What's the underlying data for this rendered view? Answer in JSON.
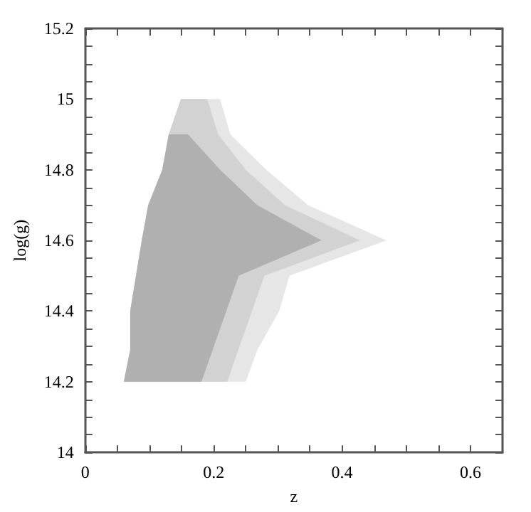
{
  "chart_data": {
    "type": "area",
    "xlabel": "z",
    "ylabel": "log(g)",
    "xlim": [
      0,
      0.65
    ],
    "ylim": [
      14,
      15.2
    ],
    "xticks": [
      0,
      {
        "value": 0.05,
        "label": null
      },
      {
        "value": 0.1,
        "label": null
      },
      {
        "value": 0.15,
        "label": null
      },
      0.2,
      {
        "value": 0.25,
        "label": null
      },
      {
        "value": 0.3,
        "label": null
      },
      {
        "value": 0.35,
        "label": null
      },
      0.4,
      {
        "value": 0.45,
        "label": null
      },
      {
        "value": 0.5,
        "label": null
      },
      {
        "value": 0.55,
        "label": null
      },
      0.6
    ],
    "yticks": [
      14,
      {
        "value": 14.05,
        "label": null
      },
      {
        "value": 14.1,
        "label": null
      },
      {
        "value": 14.15,
        "label": null
      },
      14.2,
      {
        "value": 14.25,
        "label": null
      },
      {
        "value": 14.3,
        "label": null
      },
      {
        "value": 14.35,
        "label": null
      },
      14.4,
      {
        "value": 14.45,
        "label": null
      },
      {
        "value": 14.5,
        "label": null
      },
      {
        "value": 14.55,
        "label": null
      },
      14.6,
      {
        "value": 14.65,
        "label": null
      },
      {
        "value": 14.7,
        "label": null
      },
      {
        "value": 14.75,
        "label": null
      },
      14.8,
      {
        "value": 14.85,
        "label": null
      },
      {
        "value": 14.9,
        "label": null
      },
      {
        "value": 14.95,
        "label": null
      },
      15,
      {
        "value": 15.05,
        "label": null
      },
      {
        "value": 15.1,
        "label": null
      },
      {
        "value": 15.15,
        "label": null
      },
      15.2
    ],
    "series": [
      {
        "color": "#e6e6e6",
        "x": [
          0.06,
          0.07,
          0.07,
          0.088,
          0.098,
          0.12,
          0.13,
          0.149,
          0.21,
          0.226,
          0.282,
          0.347,
          0.469,
          0.318,
          0.302,
          0.268,
          0.25
        ],
        "values": [
          14.2,
          14.29,
          14.4,
          14.6,
          14.7,
          14.8,
          14.9,
          15,
          15,
          14.9,
          14.8,
          14.7,
          14.6,
          14.5,
          14.4,
          14.29,
          14.2
        ]
      },
      {
        "color": "#d2d2d2",
        "x": [
          0.06,
          0.07,
          0.07,
          0.088,
          0.098,
          0.12,
          0.13,
          0.149,
          0.19,
          0.207,
          0.25,
          0.311,
          0.428,
          0.279,
          0.221
        ],
        "values": [
          14.2,
          14.29,
          14.4,
          14.6,
          14.7,
          14.8,
          14.9,
          15,
          15,
          14.9,
          14.8,
          14.7,
          14.6,
          14.5,
          14.2
        ]
      },
      {
        "color": "#b0b0b0",
        "x": [
          0.06,
          0.07,
          0.07,
          0.088,
          0.098,
          0.12,
          0.13,
          0.16,
          0.21,
          0.268,
          0.368,
          0.239,
          0.181
        ],
        "values": [
          14.2,
          14.29,
          14.4,
          14.6,
          14.7,
          14.8,
          14.9,
          14.9,
          14.8,
          14.7,
          14.6,
          14.5,
          14.2
        ]
      }
    ]
  }
}
